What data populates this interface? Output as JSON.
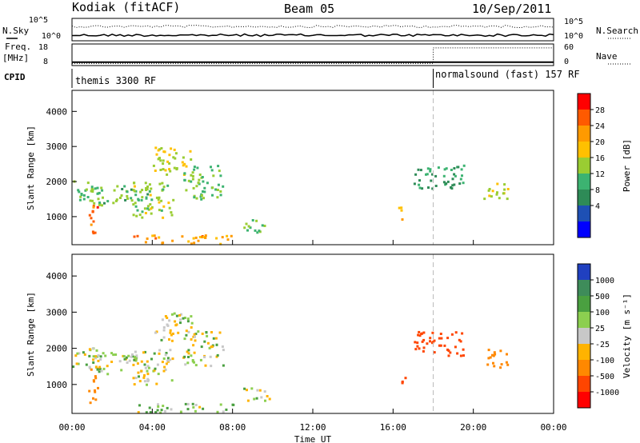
{
  "header": {
    "station": "Kodiak (fitACF)",
    "beam": "Beam 05",
    "date": "10/Sep/2011"
  },
  "status_panel": {
    "nsky_label": "N.Sky",
    "nsearch_label": "N.Search",
    "freq_label": "Freq.",
    "freq_unit": "[MHz]",
    "nave_label": "Nave",
    "cpid_label": "CPID",
    "noise_ticks_left": [
      "10^5",
      "10^0"
    ],
    "noise_ticks_right": [
      "10^5",
      "10^0"
    ],
    "freq_ticks": [
      "18",
      "8"
    ],
    "nave_ticks": [
      "60",
      "0"
    ],
    "cpid_segments": [
      {
        "label": "themis 3300 RF",
        "start_hour": 0,
        "end_hour": 18
      },
      {
        "label": "normalsound (fast) 157 RF",
        "start_hour": 18,
        "end_hour": 24
      }
    ],
    "freq_level_mhz": 9,
    "nave_level_before": 2,
    "nave_level_after": 55
  },
  "x_axis": {
    "label": "Time UT",
    "ticks": [
      "00:00",
      "04:00",
      "08:00",
      "12:00",
      "16:00",
      "20:00",
      "00:00"
    ]
  },
  "colorbars": {
    "power": {
      "label": "Power [dB]",
      "ticks": [
        "28",
        "24",
        "20",
        "16",
        "12",
        "8",
        "4"
      ],
      "colors": [
        "#ff0000",
        "#ff5a00",
        "#ff9a00",
        "#ffc000",
        "#9acd32",
        "#3cb371",
        "#2e8b57",
        "#1e50b4",
        "#0000ff"
      ]
    },
    "velocity": {
      "label": "Velocity [m s⁻¹]",
      "ticks": [
        "1000",
        "500",
        "100",
        "25",
        "-25",
        "-100",
        "-500",
        "-1000"
      ],
      "colors": [
        "#2040c0",
        "#3e8c5a",
        "#4aa040",
        "#8ccf50",
        "#c8c8c8",
        "#ffb300",
        "#ff8800",
        "#ff4500",
        "#ff0000"
      ]
    }
  },
  "chart_data": [
    {
      "type": "heatmap",
      "name": "power",
      "xlabel": "Time UT",
      "ylabel": "Slant Range [km]",
      "x_range_hours": [
        0,
        24
      ],
      "ylim": [
        200,
        4600
      ],
      "yticks": [
        "1000",
        "2000",
        "3000",
        "4000"
      ],
      "features": [
        {
          "t0": 0.0,
          "t1": 1.3,
          "r0": 1400,
          "r1": 2100,
          "value": 14
        },
        {
          "t0": 0.8,
          "t1": 1.3,
          "r0": 500,
          "r1": 1500,
          "value": 27
        },
        {
          "t0": 1.0,
          "t1": 4.0,
          "r0": 1300,
          "r1": 1900,
          "value": 13
        },
        {
          "t0": 3.0,
          "t1": 5.0,
          "r0": 1000,
          "r1": 2000,
          "value": 16
        },
        {
          "t0": 4.0,
          "t1": 6.0,
          "r0": 2200,
          "r1": 3000,
          "value": 18
        },
        {
          "t0": 5.5,
          "t1": 7.5,
          "r0": 1500,
          "r1": 2500,
          "value": 14
        },
        {
          "t0": 3.0,
          "t1": 8.0,
          "r0": 250,
          "r1": 500,
          "value": 22
        },
        {
          "t0": 8.5,
          "t1": 9.8,
          "r0": 550,
          "r1": 950,
          "value": 15
        },
        {
          "t0": 16.2,
          "t1": 16.6,
          "r0": 900,
          "r1": 1300,
          "value": 21
        },
        {
          "t0": 17.0,
          "t1": 19.5,
          "r0": 1800,
          "r1": 2500,
          "value": 10
        },
        {
          "t0": 20.5,
          "t1": 21.8,
          "r0": 1500,
          "r1": 2000,
          "value": 17
        }
      ]
    },
    {
      "type": "heatmap",
      "name": "velocity",
      "xlabel": "Time UT",
      "ylabel": "Slant Range [km]",
      "x_range_hours": [
        0,
        24
      ],
      "ylim": [
        200,
        4600
      ],
      "yticks": [
        "1000",
        "2000",
        "3000",
        "4000"
      ],
      "features": [
        {
          "t0": 0.0,
          "t1": 1.3,
          "r0": 1400,
          "r1": 2100,
          "value": 0
        },
        {
          "t0": 0.8,
          "t1": 1.3,
          "r0": 500,
          "r1": 1500,
          "value": -200
        },
        {
          "t0": 1.0,
          "t1": 4.0,
          "r0": 1300,
          "r1": 1900,
          "value": 0
        },
        {
          "t0": 3.0,
          "t1": 5.0,
          "r0": 1000,
          "r1": 2000,
          "value": 0
        },
        {
          "t0": 4.0,
          "t1": 6.0,
          "r0": 2200,
          "r1": 3000,
          "value": 0
        },
        {
          "t0": 5.5,
          "t1": 7.5,
          "r0": 1500,
          "r1": 2500,
          "value": 0
        },
        {
          "t0": 3.0,
          "t1": 8.0,
          "r0": 250,
          "r1": 500,
          "value": 50
        },
        {
          "t0": 8.5,
          "t1": 9.8,
          "r0": 550,
          "r1": 950,
          "value": 0
        },
        {
          "t0": 16.2,
          "t1": 16.6,
          "r0": 900,
          "r1": 1300,
          "value": -500
        },
        {
          "t0": 17.0,
          "t1": 19.5,
          "r0": 1800,
          "r1": 2500,
          "value": -600
        },
        {
          "t0": 20.5,
          "t1": 21.8,
          "r0": 1500,
          "r1": 2000,
          "value": -300
        }
      ]
    }
  ]
}
